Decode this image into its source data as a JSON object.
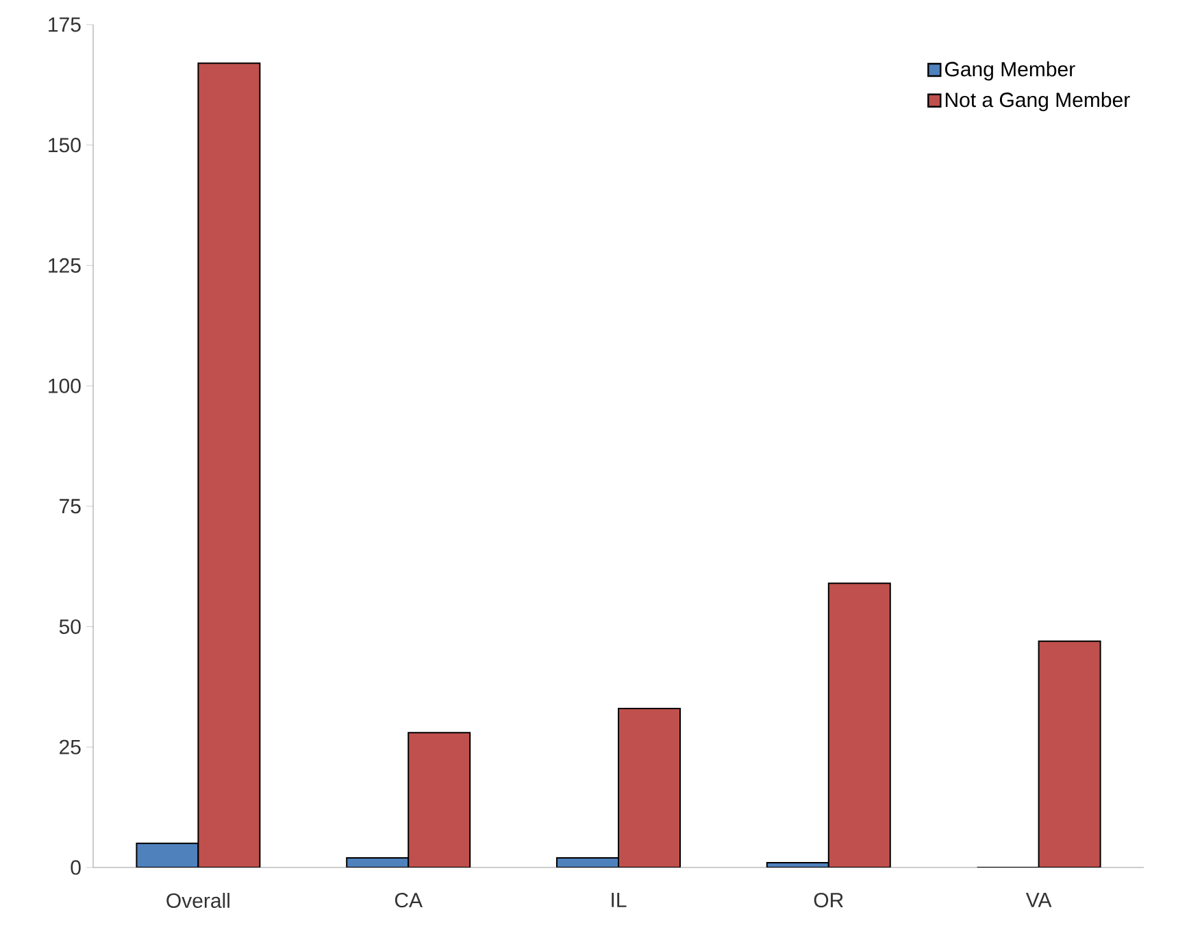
{
  "chart_data": {
    "type": "bar",
    "categories": [
      "Overall",
      "CA",
      "IL",
      "OR",
      "VA"
    ],
    "series": [
      {
        "name": "Gang Member",
        "color": "#4f81bd",
        "values": [
          5,
          2,
          2,
          1,
          0
        ]
      },
      {
        "name": "Not a Gang Member",
        "color": "#c0504d",
        "values": [
          167,
          28,
          33,
          59,
          47
        ]
      }
    ],
    "ylim": [
      0,
      175
    ],
    "yticks": [
      0,
      25,
      50,
      75,
      100,
      125,
      150,
      175
    ],
    "legend": "top right",
    "grid": false
  }
}
